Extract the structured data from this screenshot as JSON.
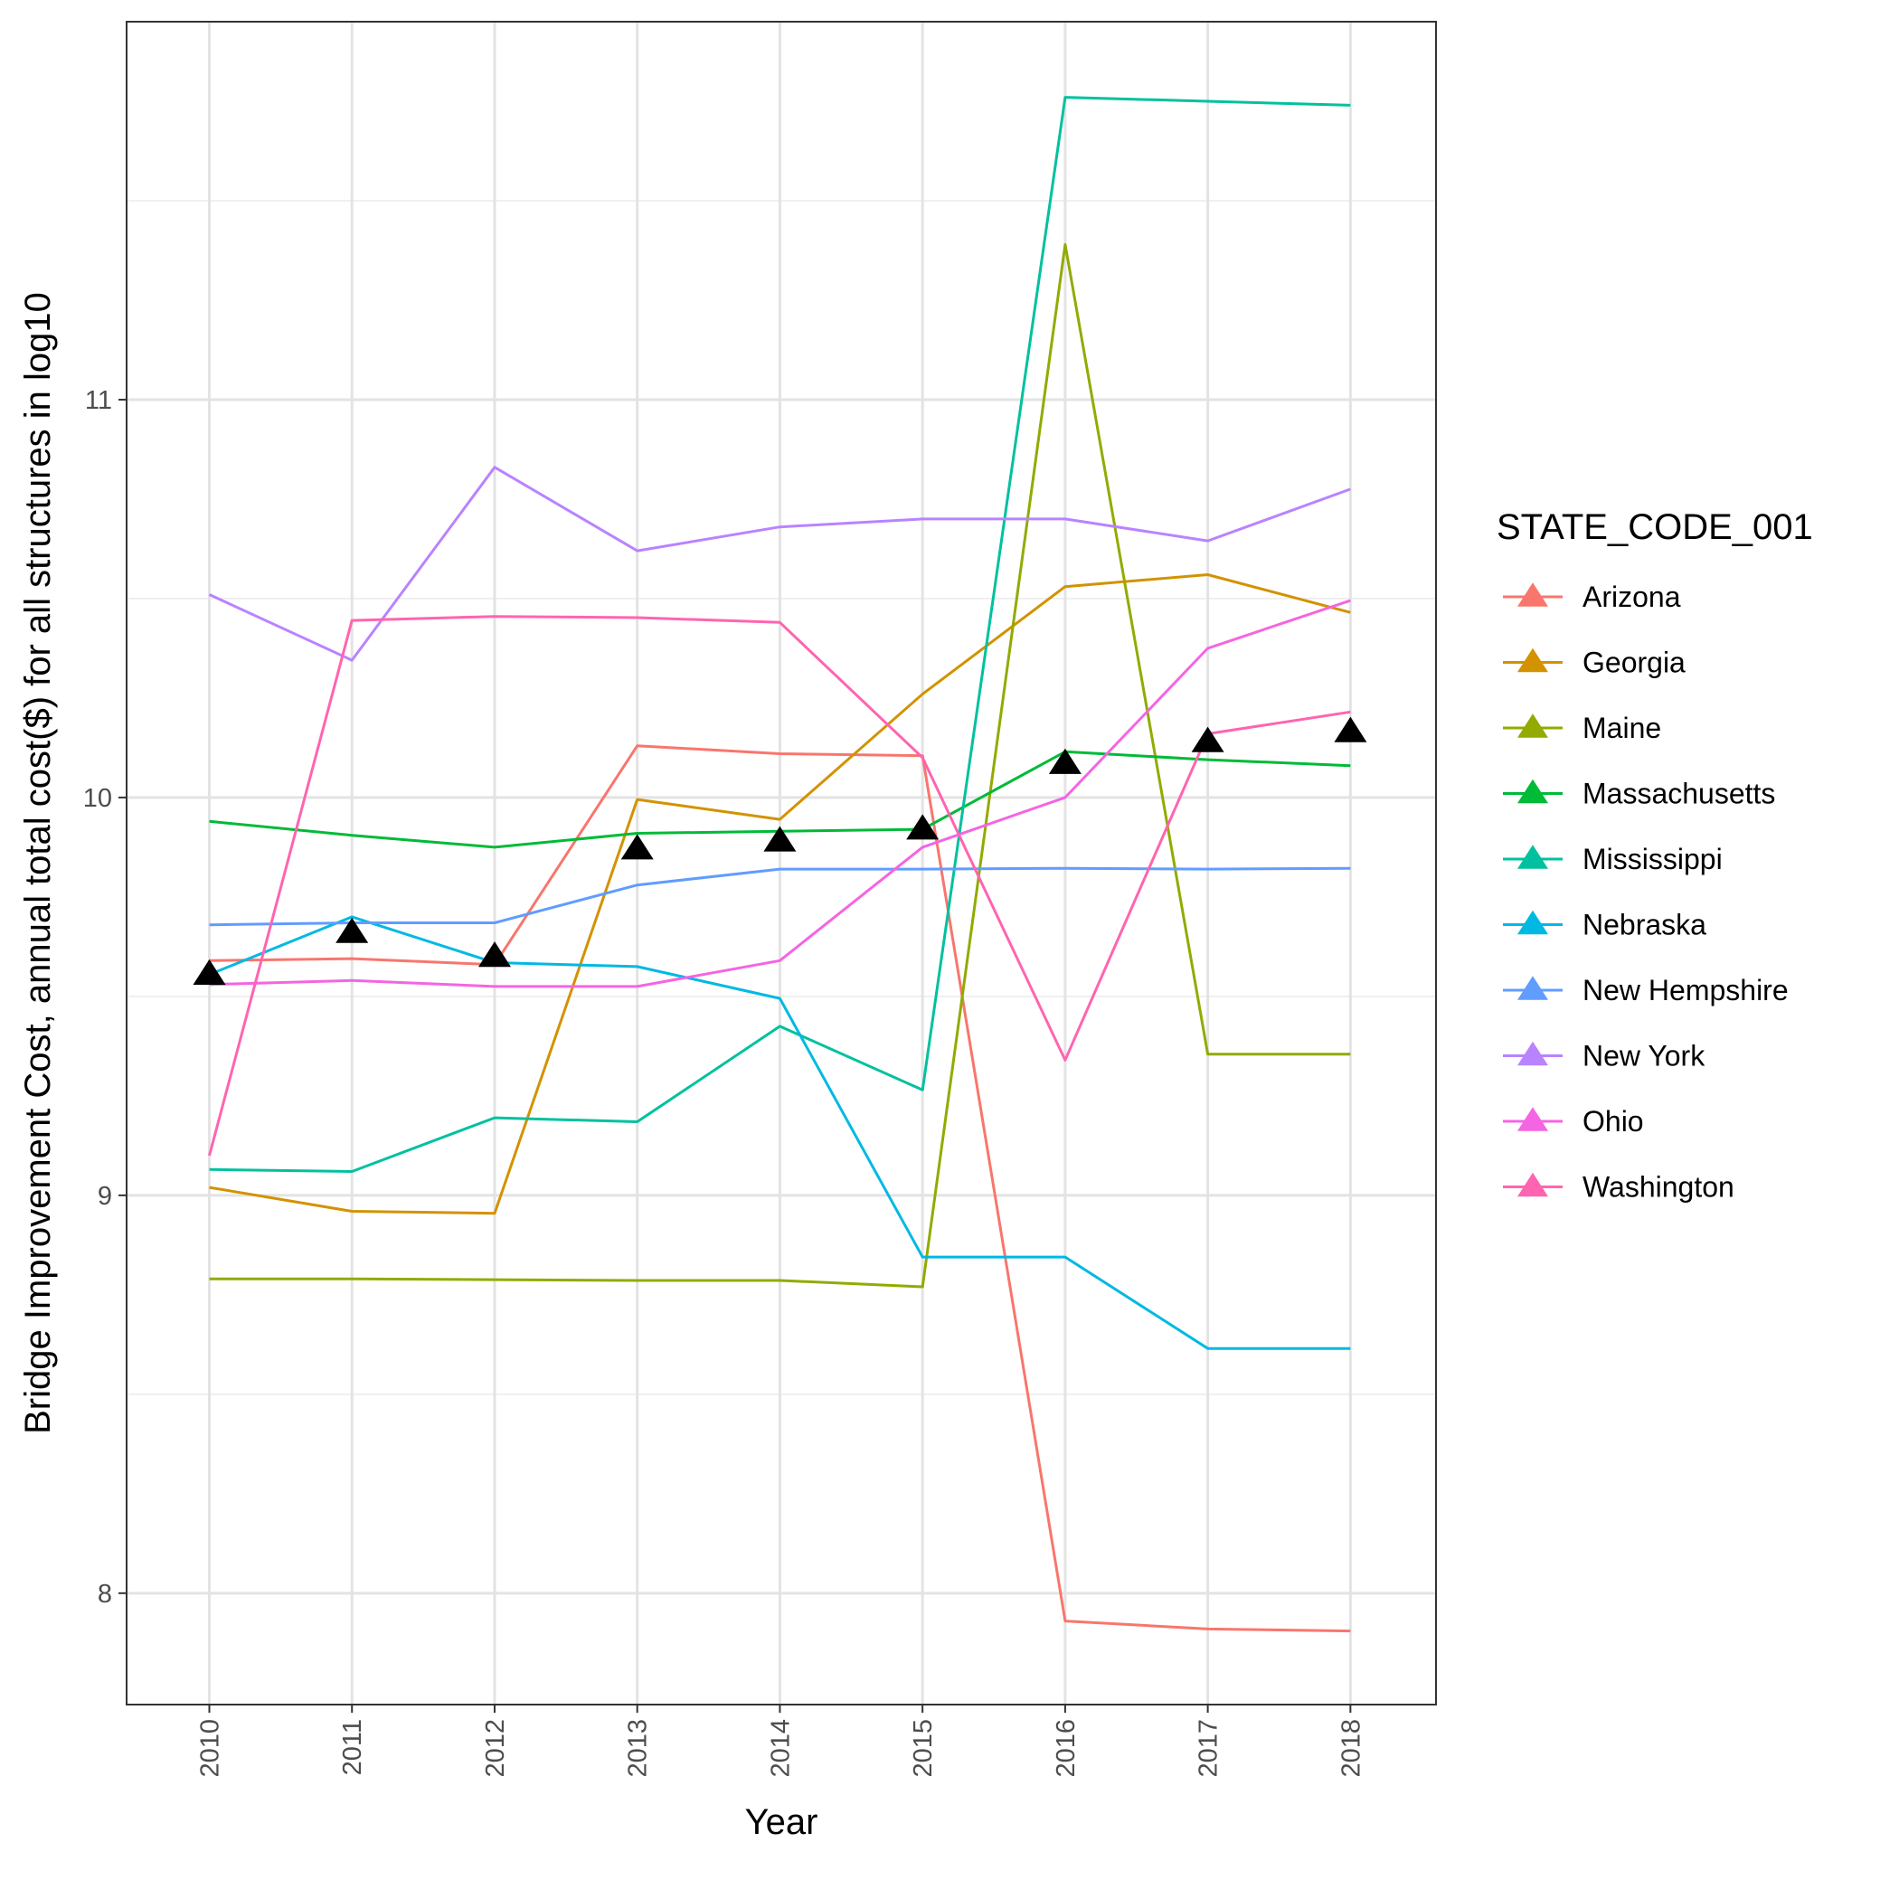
{
  "chart_data": {
    "type": "line",
    "xlabel": "Year",
    "ylabel": "Bridge Improvement Cost, annual total cost($) for all structures in log10",
    "x": [
      2010,
      2011,
      2012,
      2013,
      2014,
      2015,
      2016,
      2017,
      2018
    ],
    "xlim": [
      2009.42,
      2018.6
    ],
    "ylim": [
      7.72,
      11.95
    ],
    "y_ticks": [
      8,
      9,
      10,
      11
    ],
    "grid": true,
    "legend": {
      "title": "STATE_CODE_001",
      "position": "right"
    },
    "series": [
      {
        "name": "Arizona",
        "color": "#F8766D",
        "values": [
          9.59,
          9.595,
          9.58,
          10.13,
          10.11,
          10.105,
          7.93,
          7.91,
          7.905
        ]
      },
      {
        "name": "Georgia",
        "color": "#D39200",
        "values": [
          9.02,
          8.96,
          8.955,
          9.995,
          9.945,
          10.26,
          10.53,
          10.56,
          10.465
        ]
      },
      {
        "name": "Maine",
        "color": "#93AA00",
        "values": [
          8.79,
          8.79,
          8.788,
          8.786,
          8.786,
          8.77,
          11.39,
          9.355,
          9.355
        ]
      },
      {
        "name": "Massachusetts",
        "color": "#00BA38",
        "values": [
          9.94,
          9.905,
          9.875,
          9.91,
          9.915,
          9.92,
          10.115,
          10.095,
          10.08
        ]
      },
      {
        "name": "Mississippi",
        "color": "#00C19F",
        "values": [
          9.065,
          9.06,
          9.195,
          9.185,
          9.425,
          9.265,
          11.76,
          11.75,
          11.74
        ]
      },
      {
        "name": "Nebraska",
        "color": "#00B9E3",
        "values": [
          9.555,
          9.7,
          9.585,
          9.575,
          9.495,
          8.845,
          8.845,
          8.615,
          8.615
        ]
      },
      {
        "name": "New Hempshire",
        "color": "#619CFF",
        "values": [
          9.68,
          9.685,
          9.685,
          9.78,
          9.82,
          9.82,
          9.822,
          9.82,
          9.822
        ]
      },
      {
        "name": "New York",
        "color": "#B983FF",
        "values": [
          10.51,
          10.345,
          10.83,
          10.62,
          10.68,
          10.7,
          10.7,
          10.645,
          10.775
        ]
      },
      {
        "name": "Ohio",
        "color": "#F564E3",
        "values": [
          9.53,
          9.54,
          9.525,
          9.525,
          9.59,
          9.875,
          10.0,
          10.375,
          10.495
        ]
      },
      {
        "name": "Washington",
        "color": "#FF64B0",
        "values": [
          9.1,
          10.445,
          10.455,
          10.452,
          10.44,
          10.1,
          9.34,
          10.16,
          10.215
        ]
      }
    ],
    "mean_markers": {
      "shape": "triangle",
      "color": "#000000",
      "values": [
        9.555,
        9.66,
        9.6,
        9.87,
        9.89,
        9.92,
        10.085,
        10.14,
        10.165
      ]
    }
  }
}
